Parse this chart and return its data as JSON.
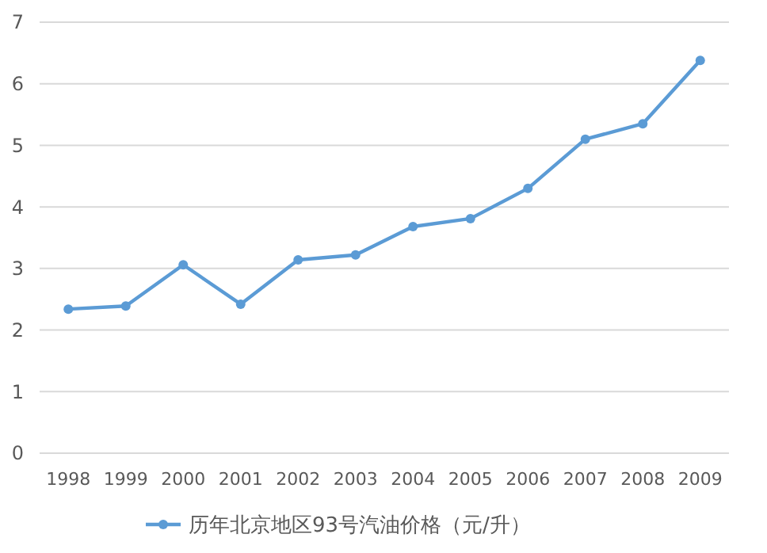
{
  "chart_data": {
    "type": "line",
    "categories": [
      "1998",
      "1999",
      "2000",
      "2001",
      "2002",
      "2003",
      "2004",
      "2005",
      "2006",
      "2007",
      "2008",
      "2009"
    ],
    "series": [
      {
        "name": "历年北京地区93号汽油价格（元/升）",
        "color": "#5b9bd5",
        "values": [
          2.34,
          2.39,
          3.06,
          2.42,
          3.14,
          3.22,
          3.68,
          3.81,
          4.3,
          5.1,
          5.35,
          6.38
        ]
      }
    ],
    "ylim": [
      0,
      7
    ],
    "yticks": [
      0,
      1,
      2,
      3,
      4,
      5,
      6,
      7
    ],
    "grid": "y",
    "legend": "bottom",
    "marker": "circle",
    "line_style": "solid"
  }
}
